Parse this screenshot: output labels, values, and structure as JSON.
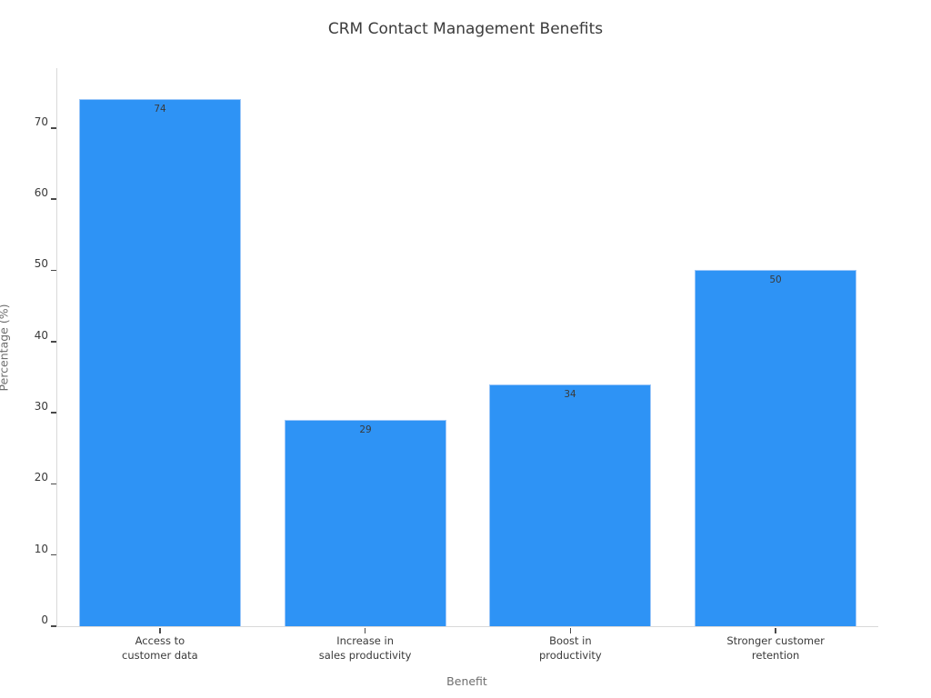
{
  "chart_data": {
    "type": "bar",
    "title": "CRM Contact Management Benefits",
    "xlabel": "Benefit",
    "ylabel": "Percentage (%)",
    "categories": [
      [
        "Access to",
        "customer data"
      ],
      [
        "Increase in",
        "sales productivity"
      ],
      [
        "Boost in",
        "productivity"
      ],
      [
        "Stronger customer",
        "retention"
      ]
    ],
    "values": [
      74,
      29,
      34,
      50
    ],
    "yticks": [
      0,
      10,
      20,
      30,
      40,
      50,
      60,
      70
    ],
    "ylim": [
      0,
      78.4
    ],
    "grid": false,
    "legend": null,
    "bar_color": "#2e93f5",
    "bar_edge_color": "#9cc7f9",
    "spine_color": "#d9d9d9",
    "tick_color": "#4a4a4a",
    "text_color": "#3a3a3a",
    "axis_title_color": "#6e6e6e"
  }
}
